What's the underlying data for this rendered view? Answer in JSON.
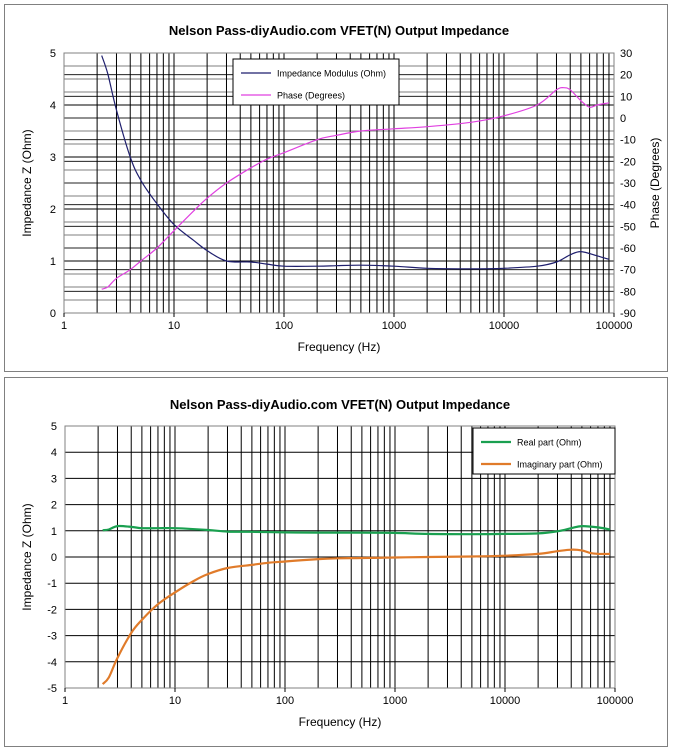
{
  "chart_data": [
    {
      "type": "line",
      "title": "Nelson Pass-diyAudio.com VFET(N) Output Impedance",
      "xlabel": "Frequency (Hz)",
      "ylabel": "Impedance Z (Ohm)",
      "y2label": "Phase (Degrees)",
      "x_scale": "log",
      "xlim": [
        1,
        100000
      ],
      "ylim": [
        0,
        5
      ],
      "y2lim": [
        -90,
        30
      ],
      "x_ticks": [
        "1",
        "10",
        "100",
        "1000",
        "10000",
        "100000"
      ],
      "y_ticks": [
        "0",
        "1",
        "2",
        "3",
        "4",
        "5"
      ],
      "y2_ticks": [
        "-90",
        "-80",
        "-70",
        "-60",
        "-50",
        "-40",
        "-30",
        "-20",
        "-10",
        "0",
        "10",
        "20",
        "30"
      ],
      "legend_position": "top-center",
      "grid": true,
      "series": [
        {
          "name": "Impedance Modulus (Ohm)",
          "axis": "left",
          "color": "#1f1f6e",
          "x": [
            2.2,
            2.5,
            3,
            4,
            5,
            7,
            10,
            15,
            20,
            30,
            50,
            70,
            100,
            200,
            300,
            500,
            1000,
            2000,
            5000,
            10000,
            20000,
            30000,
            40000,
            50000,
            70000,
            90000
          ],
          "y": [
            4.95,
            4.6,
            3.9,
            3.0,
            2.55,
            2.1,
            1.7,
            1.4,
            1.2,
            1.0,
            0.98,
            0.94,
            0.9,
            0.9,
            0.91,
            0.92,
            0.9,
            0.86,
            0.85,
            0.86,
            0.9,
            0.98,
            1.12,
            1.18,
            1.1,
            1.03
          ]
        },
        {
          "name": "Phase (Degrees)",
          "axis": "right",
          "color": "#e040e0",
          "x": [
            2.2,
            2.5,
            3,
            4,
            5,
            7,
            10,
            15,
            20,
            30,
            50,
            70,
            100,
            200,
            300,
            500,
            1000,
            2000,
            5000,
            10000,
            20000,
            30000,
            35000,
            40000,
            50000,
            60000,
            70000,
            90000
          ],
          "y": [
            -79,
            -78,
            -74,
            -70,
            -66,
            -60,
            -52,
            -43,
            -37,
            -30,
            -23,
            -19,
            -16,
            -10,
            -8,
            -6,
            -5,
            -4,
            -2,
            1,
            6,
            13,
            14,
            13,
            8,
            5,
            6,
            7
          ]
        }
      ]
    },
    {
      "type": "line",
      "title": "Nelson Pass-diyAudio.com VFET(N) Output Impedance",
      "xlabel": "Frequency (Hz)",
      "ylabel": "Impedance Z (Ohm)",
      "x_scale": "log",
      "xlim": [
        1,
        100000
      ],
      "ylim": [
        -5,
        5
      ],
      "x_ticks": [
        "1",
        "10",
        "100",
        "1000",
        "10000",
        "100000"
      ],
      "y_ticks": [
        "-5",
        "-4",
        "-3",
        "-2",
        "-1",
        "0",
        "1",
        "2",
        "3",
        "4",
        "5"
      ],
      "legend_position": "top-right",
      "grid": true,
      "series": [
        {
          "name": "Real part (Ohm)",
          "color": "#1aa050",
          "x": [
            2.2,
            2.5,
            3,
            4,
            5,
            7,
            10,
            20,
            30,
            50,
            100,
            200,
            500,
            1000,
            2000,
            5000,
            10000,
            20000,
            30000,
            40000,
            50000,
            70000,
            90000
          ],
          "y": [
            1.02,
            1.05,
            1.18,
            1.15,
            1.1,
            1.1,
            1.1,
            1.03,
            0.97,
            0.96,
            0.94,
            0.93,
            0.93,
            0.92,
            0.88,
            0.87,
            0.88,
            0.9,
            0.98,
            1.1,
            1.18,
            1.13,
            1.05
          ]
        },
        {
          "name": "Imaginary part (Ohm)",
          "color": "#e07b2a",
          "x": [
            2.2,
            2.5,
            3,
            4,
            5,
            7,
            10,
            15,
            20,
            30,
            50,
            70,
            100,
            200,
            300,
            500,
            1000,
            2000,
            5000,
            10000,
            20000,
            30000,
            40000,
            50000,
            60000,
            70000,
            90000
          ],
          "y": [
            -4.85,
            -4.6,
            -3.85,
            -2.9,
            -2.4,
            -1.8,
            -1.35,
            -0.9,
            -0.65,
            -0.42,
            -0.3,
            -0.22,
            -0.17,
            -0.08,
            -0.05,
            -0.04,
            -0.02,
            0.0,
            0.02,
            0.05,
            0.12,
            0.22,
            0.28,
            0.25,
            0.15,
            0.12,
            0.12
          ]
        }
      ]
    }
  ]
}
